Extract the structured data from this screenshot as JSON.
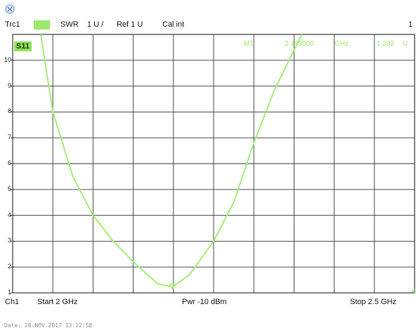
{
  "header": {
    "trace": "Trc1",
    "trace_param": "S11",
    "format": "SWR",
    "scale": "1 U /",
    "ref": "Ref 1 U",
    "cal": "Cal int",
    "channel_num": "1"
  },
  "marker": {
    "name": "M1",
    "freq": "2.199000",
    "freq_unit": "GHz",
    "value": "1.232",
    "value_unit": "U"
  },
  "footer": {
    "channel": "Ch1",
    "start": "Start  2 GHz",
    "power": "Pwr  -10 dBm",
    "stop": "Stop  2.5 GHz"
  },
  "timestamp": "Date: 28.NOV.2017  13:12:58",
  "colors": {
    "trace": "#a6ec78",
    "grid": "#333333"
  },
  "icons": {
    "top_left": "rs-logo-icon"
  },
  "chart_data": {
    "type": "line",
    "x_unit": "GHz",
    "xlim": [
      2.0,
      2.5
    ],
    "ylim": [
      1,
      11
    ],
    "yticks": [
      10,
      9,
      8,
      7,
      6,
      5,
      4,
      3,
      2,
      1
    ],
    "series": [
      {
        "x": [
          2.035,
          2.05,
          2.075,
          2.1,
          2.125,
          2.15,
          2.175,
          2.18,
          2.199,
          2.22,
          2.25,
          2.275,
          2.3,
          2.325,
          2.35,
          2.36
        ],
        "y": [
          11.0,
          8.0,
          5.5,
          4.0,
          3.0,
          2.2,
          1.5,
          1.35,
          1.232,
          1.7,
          3.0,
          4.5,
          6.8,
          8.8,
          10.4,
          11.0
        ]
      }
    ],
    "marker": {
      "x": 2.199,
      "y": 1.232
    }
  }
}
